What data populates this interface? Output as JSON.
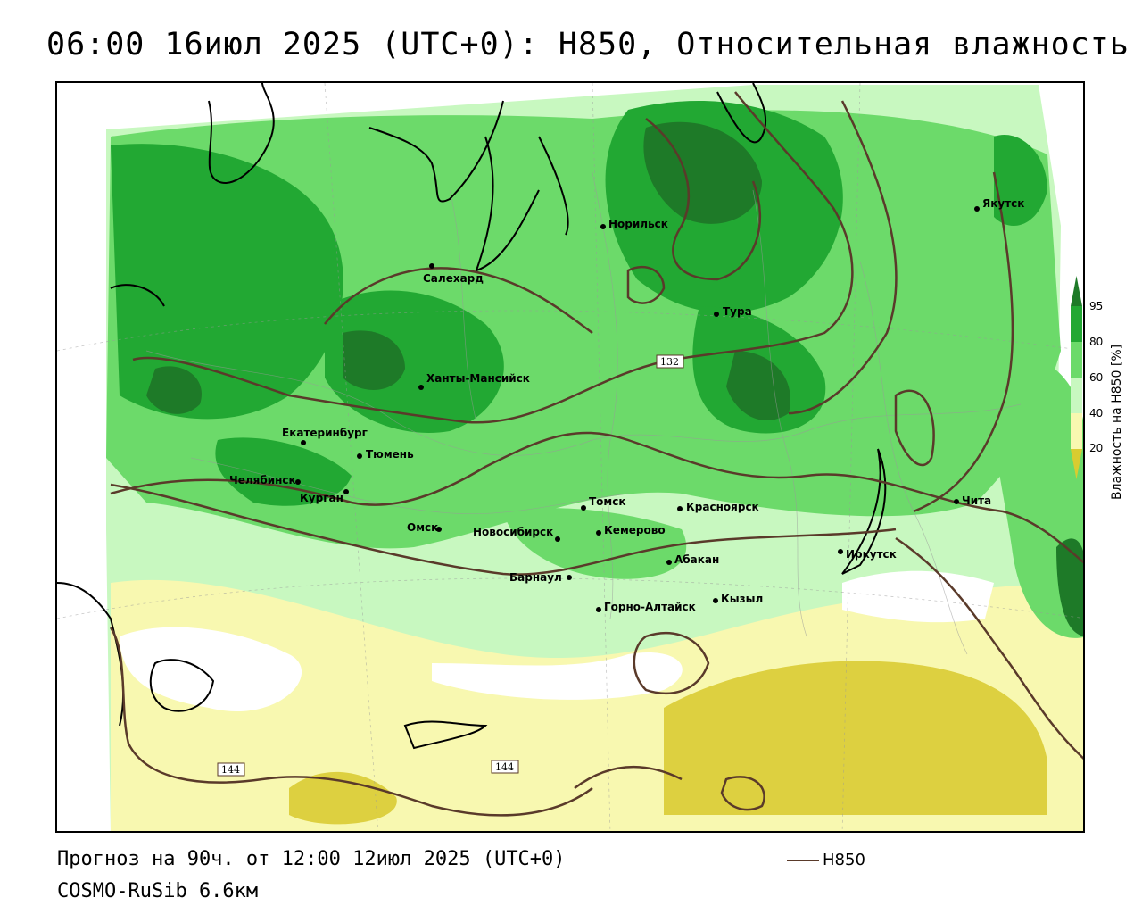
{
  "title": "06:00 16июл 2025 (UTC+0): H850, Относительная влажность",
  "forecast_line": "Прогноз на 90ч. от 12:00 12июл 2025 (UTC+0)",
  "model_line": "COSMO-RuSib 6.6км",
  "legend": {
    "series_label": "H850",
    "line_color": "#5a3a2a"
  },
  "colorbar": {
    "title": "Влажность на H850 [%]",
    "ticks": [
      "95",
      "80",
      "60",
      "40",
      "20"
    ],
    "colors": {
      "above_95": "#1e7a28",
      "80_95": "#22a833",
      "60_80": "#6cda6a",
      "40_60": "#c8f8c0",
      "20_40": "#f8f8b0",
      "below_20": "#d8cc30"
    }
  },
  "contour_labels": [
    "132",
    "144",
    "144"
  ],
  "cities": [
    {
      "name": "Якутск"
    },
    {
      "name": "Норильск"
    },
    {
      "name": "Салехард"
    },
    {
      "name": "Тура"
    },
    {
      "name": "Ханты-Мансийск"
    },
    {
      "name": "Екатеринбург"
    },
    {
      "name": "Тюмень"
    },
    {
      "name": "Челябинск"
    },
    {
      "name": "Курган"
    },
    {
      "name": "Омск"
    },
    {
      "name": "Новосибирск"
    },
    {
      "name": "Томск"
    },
    {
      "name": "Кемерово"
    },
    {
      "name": "Красноярск"
    },
    {
      "name": "Абакан"
    },
    {
      "name": "Барнаул"
    },
    {
      "name": "Горно-Алтайск"
    },
    {
      "name": "Кызыл"
    },
    {
      "name": "Иркутск"
    },
    {
      "name": "Чита"
    }
  ]
}
